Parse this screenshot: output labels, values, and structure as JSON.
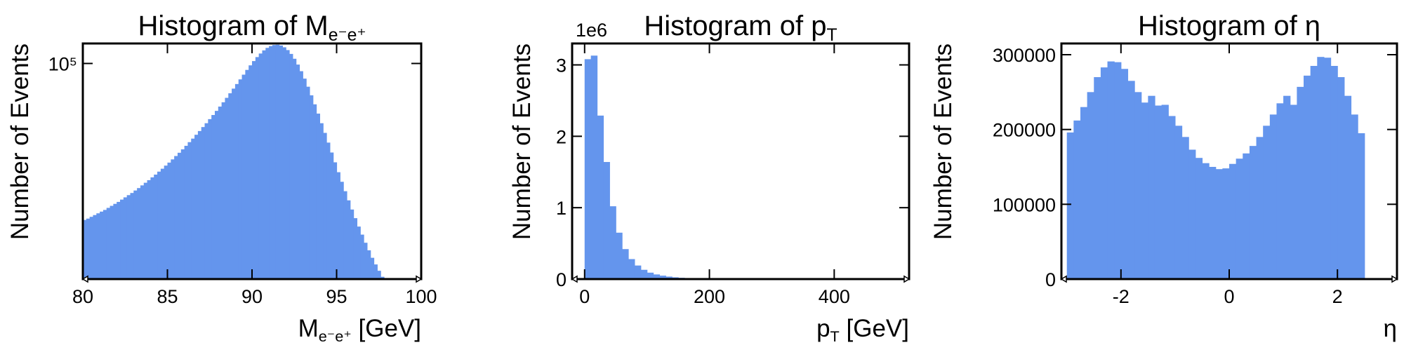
{
  "figure": {
    "bar_color": "#6495ED",
    "axis_color": "#000000"
  },
  "chart_data": [
    {
      "type": "bar",
      "title": {
        "main": "Histogram of M",
        "sub": "e⁻e⁺"
      },
      "xlabel": {
        "main": "M",
        "sub": "e⁻e⁺",
        "suffix": " [GeV]"
      },
      "ylabel": "Number of Events",
      "yscale": "log",
      "xlim": [
        80,
        100
      ],
      "ylim": [
        14000,
        120000
      ],
      "xticks": [
        80,
        85,
        90,
        95,
        100
      ],
      "xtick_labels": [
        "80",
        "85",
        "90",
        "95",
        "100"
      ],
      "yticks": [
        100000
      ],
      "ytick_labels": [
        "10⁵"
      ],
      "bin_width": 0.2,
      "bin_start": 80,
      "values": [
        24000,
        24300,
        24700,
        25100,
        25500,
        25900,
        26300,
        26800,
        27300,
        27800,
        28300,
        28900,
        29500,
        30100,
        30700,
        31400,
        32100,
        32900,
        33700,
        34500,
        35400,
        36300,
        37300,
        38300,
        39400,
        40500,
        41700,
        43000,
        44300,
        45700,
        47200,
        48800,
        50400,
        52200,
        54000,
        56000,
        58000,
        60200,
        62500,
        64900,
        67500,
        70200,
        73100,
        76200,
        79500,
        82900,
        86500,
        90300,
        94300,
        98300,
        102200,
        106000,
        109500,
        112700,
        115300,
        117200,
        118300,
        118600,
        117800,
        115900,
        113000,
        109100,
        104400,
        99000,
        93200,
        87100,
        80900,
        74800,
        68900,
        63300,
        58000,
        53100,
        48600,
        44400,
        40600,
        37100,
        34000,
        31200,
        28700,
        26400,
        24400,
        22600,
        21000,
        19500,
        18200,
        17000,
        16000,
        15100,
        14300,
        13600,
        13000,
        12500,
        12000,
        11600,
        11200,
        10800,
        10500,
        10200,
        9900,
        9700
      ]
    },
    {
      "type": "bar",
      "title": {
        "main": "Histogram of p",
        "sub": "T"
      },
      "xlabel": {
        "main": "p",
        "sub": "T",
        "suffix": " [GeV]"
      },
      "ylabel": "Number of Events",
      "yscale": "linear",
      "y_offset_label": "1e6",
      "xlim": [
        -20,
        520
      ],
      "ylim": [
        0,
        3300000
      ],
      "xticks": [
        0,
        200,
        400
      ],
      "xtick_labels": [
        "0",
        "200",
        "400"
      ],
      "yticks": [
        0,
        1000000,
        2000000,
        3000000
      ],
      "ytick_labels": [
        "0",
        "1",
        "2",
        "3"
      ],
      "bin_width": 10,
      "bin_start": 0,
      "values": [
        3080000,
        3130000,
        2290000,
        1640000,
        1020000,
        650000,
        420000,
        280000,
        190000,
        130000,
        90000,
        65000,
        48000,
        35000,
        25000,
        18000,
        13000,
        9000,
        6000,
        4000,
        3000,
        2200,
        1600,
        1200,
        900,
        700,
        500,
        400,
        300,
        200,
        150,
        120,
        100,
        80,
        60,
        50,
        40,
        30,
        20,
        20,
        15,
        10,
        10,
        8,
        6,
        5,
        4,
        3,
        2,
        1
      ]
    },
    {
      "type": "bar",
      "title": {
        "main": "Histogram of η",
        "sub": ""
      },
      "xlabel": {
        "main": "η",
        "sub": "",
        "suffix": ""
      },
      "ylabel": "Number of Events",
      "yscale": "linear",
      "xlim": [
        -3.1,
        3.1
      ],
      "ylim": [
        0,
        315000
      ],
      "xticks": [
        -2,
        0,
        2
      ],
      "xtick_labels": [
        "-2",
        "0",
        "2"
      ],
      "yticks": [
        0,
        100000,
        200000,
        300000
      ],
      "ytick_labels": [
        "0",
        "100000",
        "200000",
        "300000"
      ],
      "bin_width": 0.125,
      "bin_start": -3.0,
      "values": [
        196000,
        212000,
        230000,
        250000,
        270000,
        283000,
        291000,
        290000,
        281000,
        265000,
        250000,
        236000,
        245000,
        232000,
        233000,
        218000,
        205000,
        190000,
        173000,
        162000,
        155000,
        150000,
        147000,
        148000,
        154000,
        161000,
        168000,
        178000,
        190000,
        205000,
        220000,
        235000,
        245000,
        233000,
        257000,
        272000,
        285000,
        297000,
        296000,
        285000,
        270000,
        245000,
        220000,
        195000
      ]
    }
  ]
}
